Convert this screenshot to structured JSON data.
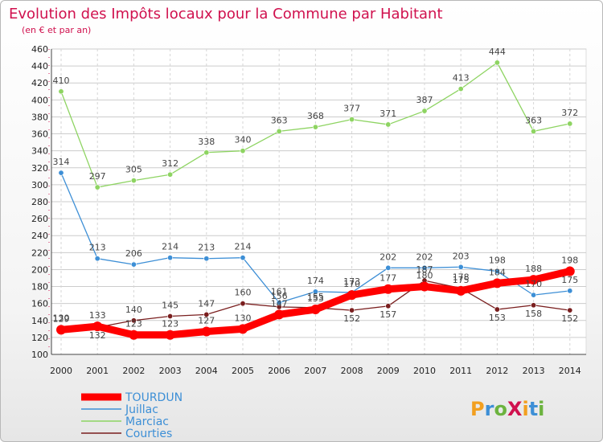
{
  "chart_data": {
    "type": "line",
    "title": "Evolution des Impôts locaux pour la Commune par Habitant",
    "subtitle": "(en € et par an)",
    "xlabel": "",
    "ylabel": "",
    "categories": [
      "2000",
      "2001",
      "2002",
      "2003",
      "2004",
      "2005",
      "2006",
      "2007",
      "2008",
      "2009",
      "2010",
      "2011",
      "2012",
      "2013",
      "2014"
    ],
    "ylim": [
      100,
      460
    ],
    "yticks": [
      100,
      120,
      140,
      160,
      180,
      200,
      220,
      240,
      260,
      280,
      300,
      320,
      340,
      360,
      380,
      400,
      420,
      440,
      460
    ],
    "grid": true,
    "legend_position": "bottom-left",
    "series": [
      {
        "name": "TOURDUN",
        "color": "#ff0000",
        "values": [
          129,
          133,
          123,
          123,
          127,
          130,
          147,
          153,
          170,
          177,
          180,
          175,
          184,
          188,
          198
        ]
      },
      {
        "name": "Juillac",
        "color": "#3d8fd6",
        "values": [
          314,
          213,
          206,
          214,
          213,
          214,
          161,
          174,
          173,
          202,
          202,
          203,
          198,
          170,
          175
        ]
      },
      {
        "name": "Marciac",
        "color": "#8ed462",
        "values": [
          410,
          297,
          305,
          312,
          338,
          340,
          363,
          368,
          377,
          371,
          387,
          413,
          444,
          363,
          372
        ]
      },
      {
        "name": "Courties",
        "color": "#7a1f1f",
        "values": [
          130,
          132,
          140,
          145,
          147,
          160,
          156,
          155,
          152,
          157,
          187,
          178,
          153,
          158,
          152
        ]
      }
    ]
  },
  "brand": {
    "logo_text": "ProXiti"
  },
  "colors": {
    "title": "#d0114e",
    "axis_text": "#222222",
    "grid": "#cccccc"
  }
}
